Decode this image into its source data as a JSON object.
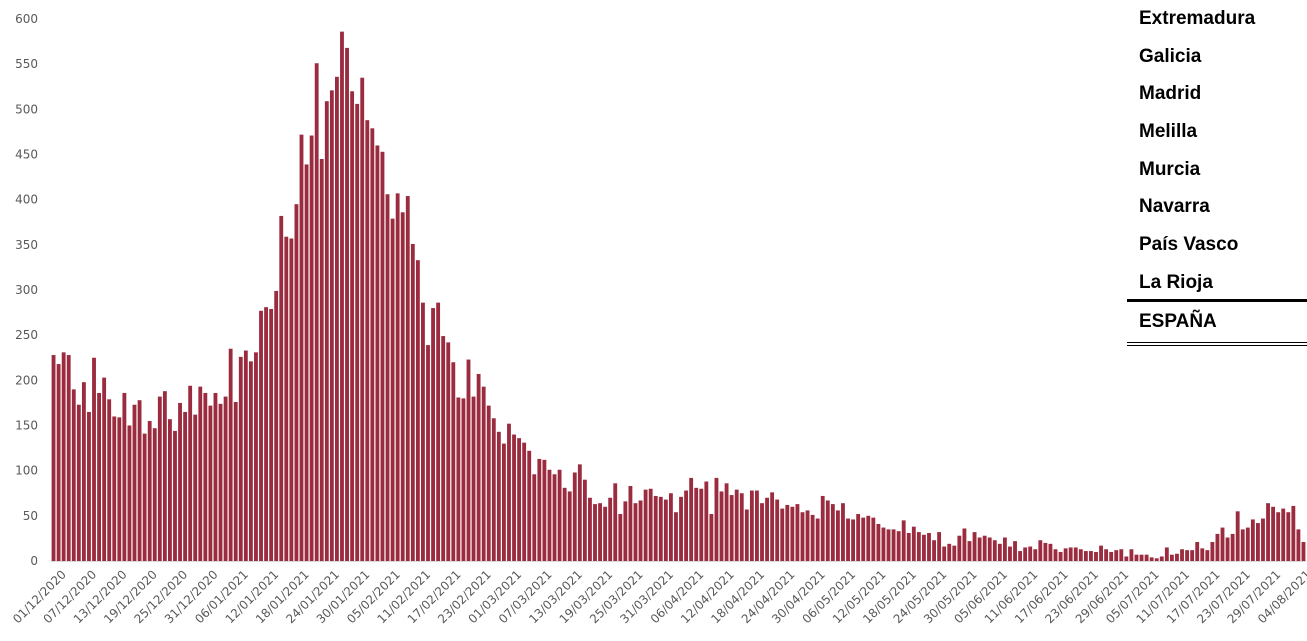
{
  "colors": {
    "bar": "#9B2C3F",
    "tick_text": "#595959"
  },
  "side_table": {
    "regions": [
      "Extremadura",
      "Galicia",
      "Madrid",
      "Melilla",
      "Murcia",
      "Navarra",
      "País Vasco",
      "La Rioja"
    ],
    "total_label": "ESPAÑA"
  },
  "chart_data": {
    "type": "bar",
    "title": "",
    "xlabel": "",
    "ylabel": "",
    "ylim": [
      0,
      600
    ],
    "yticks": [
      0,
      50,
      100,
      150,
      200,
      250,
      300,
      350,
      400,
      450,
      500,
      550,
      600
    ],
    "grid": false,
    "start_date": "01/12/2020",
    "xtick_labels": [
      "01/12/2020",
      "07/12/2020",
      "13/12/2020",
      "19/12/2020",
      "25/12/2020",
      "31/12/2020",
      "06/01/2021",
      "12/01/2021",
      "18/01/2021",
      "24/01/2021",
      "30/01/2021",
      "05/02/2021",
      "11/02/2021",
      "17/02/2021",
      "23/02/2021",
      "01/03/2021",
      "07/03/2021",
      "13/03/2021",
      "19/03/2021",
      "25/03/2021",
      "31/03/2021",
      "06/04/2021",
      "12/04/2021",
      "18/04/2021",
      "24/04/2021",
      "30/04/2021",
      "06/05/2021",
      "12/05/2021",
      "18/05/2021",
      "24/05/2021",
      "30/05/2021",
      "05/06/2021",
      "11/06/2021",
      "17/06/2021",
      "23/06/2021",
      "29/06/2021",
      "05/07/2021",
      "11/07/2021",
      "17/07/2021",
      "23/07/2021",
      "29/07/2021",
      "04/08/2021"
    ],
    "values": [
      228,
      218,
      231,
      228,
      190,
      173,
      198,
      165,
      225,
      186,
      203,
      179,
      160,
      159,
      186,
      150,
      173,
      178,
      141,
      155,
      147,
      182,
      188,
      157,
      144,
      175,
      165,
      194,
      162,
      193,
      186,
      172,
      186,
      174,
      182,
      235,
      176,
      226,
      233,
      221,
      231,
      277,
      281,
      279,
      299,
      382,
      359,
      357,
      395,
      472,
      439,
      471,
      551,
      445,
      509,
      521,
      536,
      586,
      568,
      520,
      506,
      535,
      488,
      479,
      460,
      453,
      406,
      379,
      407,
      386,
      404,
      351,
      333,
      286,
      239,
      280,
      286,
      249,
      242,
      220,
      181,
      180,
      223,
      182,
      207,
      193,
      172,
      158,
      143,
      130,
      152,
      140,
      136,
      131,
      122,
      96,
      113,
      112,
      101,
      96,
      101,
      81,
      77,
      98,
      107,
      90,
      70,
      63,
      64,
      60,
      70,
      86,
      52,
      66,
      83,
      64,
      67,
      79,
      80,
      72,
      71,
      68,
      75,
      54,
      71,
      78,
      92,
      81,
      80,
      88,
      52,
      92,
      77,
      86,
      73,
      79,
      75,
      57,
      78,
      78,
      64,
      70,
      76,
      68,
      58,
      62,
      60,
      63,
      54,
      56,
      51,
      47,
      72,
      67,
      63,
      56,
      64,
      47,
      46,
      52,
      48,
      50,
      48,
      41,
      37,
      35,
      35,
      33,
      45,
      31,
      38,
      32,
      29,
      31,
      23,
      32,
      16,
      19,
      17,
      28,
      36,
      22,
      32,
      26,
      28,
      26,
      23,
      19,
      26,
      16,
      22,
      11,
      15,
      16,
      13,
      23,
      20,
      19,
      13,
      10,
      14,
      15,
      15,
      13,
      11,
      11,
      10,
      17,
      13,
      10,
      12,
      13,
      5,
      13,
      7,
      7,
      7,
      4,
      3,
      5,
      15,
      7,
      8,
      13,
      12,
      12,
      21,
      14,
      12,
      21,
      30,
      37,
      26,
      30,
      55,
      35,
      37,
      46,
      42,
      47,
      64,
      60,
      54,
      58,
      54,
      61,
      35,
      21
    ]
  }
}
